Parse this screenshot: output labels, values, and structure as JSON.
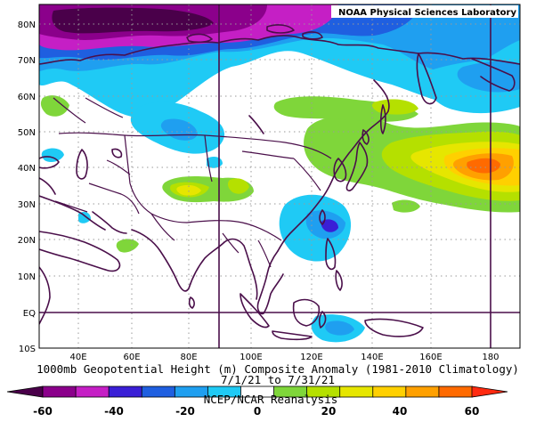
{
  "map": {
    "credit": "NOAA Physical Sciences Laboratory",
    "lat_labels": [
      "80N",
      "70N",
      "60N",
      "50N",
      "40N",
      "30N",
      "20N",
      "10N",
      "EQ",
      "10S"
    ],
    "lon_labels": [
      "40E",
      "60E",
      "80E",
      "100E",
      "120E",
      "140E",
      "160E",
      "180"
    ],
    "lat_range": [
      -10,
      85
    ],
    "lon_range": [
      30,
      190
    ],
    "marker_lines": {
      "longitudes": [
        90,
        180
      ],
      "latitudes": [
        0
      ]
    }
  },
  "caption": {
    "line1": "1000mb Geopotential Height (m) Composite Anomaly (1981-2010 Climatology)",
    "line2": "7/1/21 to 7/31/21",
    "line3": "NCEP/NCAR Reanalysis"
  },
  "colorbar": {
    "labels": [
      "-60",
      "-40",
      "-20",
      "0",
      "20",
      "40",
      "60"
    ],
    "colors": [
      "#4a004a",
      "#8b008b",
      "#c51fc5",
      "#3a1fd6",
      "#1f5fe0",
      "#1f9ff0",
      "#1fcaf5",
      "#ffffff",
      "#7fd63a",
      "#b5e000",
      "#e6e600",
      "#ffd000",
      "#ffa000",
      "#ff6a00",
      "#ff2a10"
    ]
  }
}
